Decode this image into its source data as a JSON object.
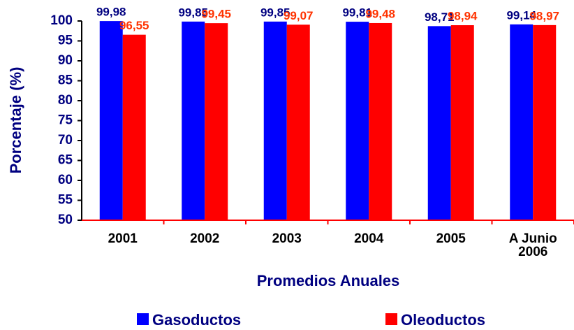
{
  "chart_data": {
    "type": "bar",
    "y_label": "Porcentaje (%)",
    "x_label": "Promedios Anuales",
    "categories": [
      "2001",
      "2002",
      "2003",
      "2004",
      "2005",
      "A Junio 2006"
    ],
    "series": [
      {
        "name": "Gasoductos",
        "color": "#0000ff",
        "label_color": "#000080",
        "values": [
          99.98,
          99.85,
          99.85,
          99.81,
          98.71,
          99.14
        ],
        "value_labels": [
          "99,98",
          "99,85",
          "99,85",
          "99,81",
          "98,71",
          "99,14"
        ]
      },
      {
        "name": "Oleoductos",
        "color": "#ff0000",
        "label_color": "#ff3300",
        "values": [
          96.55,
          99.45,
          99.07,
          99.48,
          98.94,
          98.97
        ],
        "value_labels": [
          "96,55",
          "99,45",
          "99,07",
          "99,48",
          "98,94",
          "98,97"
        ]
      }
    ],
    "ylim": [
      50,
      100
    ],
    "yticks": [
      50,
      55,
      60,
      65,
      70,
      75,
      80,
      85,
      90,
      95,
      100
    ],
    "grid": false,
    "legend": "bottom"
  }
}
